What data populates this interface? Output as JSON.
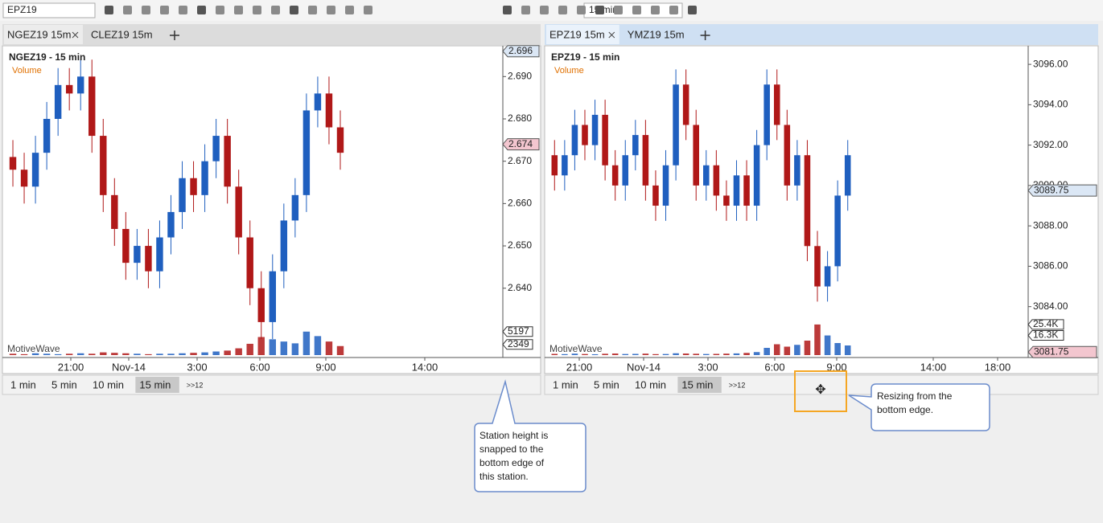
{
  "toolbar": {
    "symbol": "EPZ19",
    "interval": "15 min"
  },
  "panels": [
    {
      "tabs": [
        "NGEZ19 15m",
        "CLEZ19 15m"
      ],
      "title": "NGEZ19 - 15 min",
      "study": "Volume",
      "watermark": "MotiveWave",
      "ylim": [
        2.6242,
        2.6967
      ],
      "yticks": [
        {
          "value": 2.64,
          "label": "2.640"
        },
        {
          "value": 2.65,
          "label": "2.650"
        },
        {
          "value": 2.66,
          "label": "2.660"
        },
        {
          "value": 2.67,
          "label": "2.670"
        },
        {
          "value": 2.68,
          "label": "2.680"
        },
        {
          "value": 2.69,
          "label": "2.690"
        }
      ],
      "price_tags": [
        {
          "value": 2.696,
          "label": "2.696"
        },
        {
          "value": 2.674,
          "label": "2.674"
        }
      ],
      "volume_tags": [
        5197,
        2349
      ],
      "vlim": [
        0,
        8000
      ],
      "xticks": [
        "21:00",
        "Nov-14",
        "3:00",
        "6:00",
        "9:00",
        "14:00"
      ],
      "candles": {
        "open": [
          2.671,
          2.668,
          2.664,
          2.672,
          2.68,
          2.688,
          2.686,
          2.69,
          2.676,
          2.662,
          2.654,
          2.646,
          2.65,
          2.644,
          2.652,
          2.658,
          2.666,
          2.662,
          2.67,
          2.676,
          2.664,
          2.652,
          2.64,
          2.632,
          2.644,
          2.656,
          2.662,
          2.682,
          2.686,
          2.678
        ],
        "high": [
          2.675,
          2.672,
          2.676,
          2.684,
          2.692,
          2.692,
          2.694,
          2.694,
          2.68,
          2.666,
          2.658,
          2.654,
          2.654,
          2.656,
          2.662,
          2.67,
          2.67,
          2.674,
          2.68,
          2.68,
          2.668,
          2.656,
          2.644,
          2.648,
          2.66,
          2.666,
          2.686,
          2.69,
          2.69,
          2.682
        ],
        "low": [
          2.664,
          2.66,
          2.66,
          2.668,
          2.676,
          2.682,
          2.682,
          2.672,
          2.658,
          2.65,
          2.642,
          2.642,
          2.64,
          2.64,
          2.648,
          2.654,
          2.658,
          2.658,
          2.666,
          2.66,
          2.648,
          2.636,
          2.628,
          2.628,
          2.64,
          2.652,
          2.658,
          2.678,
          2.674,
          2.668
        ],
        "close": [
          2.668,
          2.664,
          2.672,
          2.68,
          2.688,
          2.686,
          2.69,
          2.676,
          2.662,
          2.654,
          2.646,
          2.65,
          2.644,
          2.652,
          2.658,
          2.666,
          2.662,
          2.67,
          2.676,
          2.664,
          2.652,
          2.64,
          2.632,
          2.644,
          2.656,
          2.662,
          2.682,
          2.686,
          2.678,
          2.672
        ]
      },
      "volume": [
        300,
        200,
        400,
        300,
        200,
        300,
        400,
        300,
        600,
        500,
        400,
        300,
        200,
        300,
        300,
        400,
        500,
        600,
        800,
        1000,
        1500,
        2500,
        4000,
        3500,
        3000,
        2600,
        5197,
        4200,
        3000,
        2000
      ],
      "periods": [
        "1 min",
        "5 min",
        "10 min",
        "15 min",
        ">>12"
      ]
    },
    {
      "tabs": [
        "EPZ19 15m",
        "YMZ19 15m"
      ],
      "title": "EPZ19 - 15 min",
      "study": "Volume",
      "watermark": "MotiveWave",
      "ylim": [
        3081.6,
        3096.8
      ],
      "yticks": [
        {
          "value": 3084,
          "label": "3084.00"
        },
        {
          "value": 3086,
          "label": "3086.00"
        },
        {
          "value": 3088,
          "label": "3088.00"
        },
        {
          "value": 3090,
          "label": "3090.00"
        },
        {
          "value": 3092,
          "label": "3092.00"
        },
        {
          "value": 3094,
          "label": "3094.00"
        },
        {
          "value": 3096,
          "label": "3096.00"
        }
      ],
      "price_tags": [
        {
          "value": 3089.75,
          "label": "3089.75"
        },
        {
          "value": 3081.75,
          "label": "3081.75"
        }
      ],
      "volume_tags": [
        {
          "value": 25400,
          "label": "25.4K"
        },
        {
          "value": 16300,
          "label": "16.3K"
        }
      ],
      "vlim": [
        0,
        30000
      ],
      "xticks": [
        "21:00",
        "Nov-14",
        "3:00",
        "6:00",
        "9:00",
        "14:00",
        "18:00"
      ],
      "candles": {
        "open": [
          3091.5,
          3090.5,
          3091.5,
          3093,
          3092,
          3093.5,
          3091,
          3090,
          3091.5,
          3092.5,
          3090,
          3089,
          3091,
          3095,
          3093,
          3090,
          3091,
          3089.5,
          3089,
          3090.5,
          3089,
          3092,
          3095,
          3093,
          3090,
          3091.5,
          3087,
          3085,
          3086,
          3089.5
        ],
        "high": [
          3092.25,
          3092.25,
          3093.75,
          3093.75,
          3094.25,
          3094.25,
          3091.75,
          3092.25,
          3093.25,
          3093.25,
          3090.75,
          3091.75,
          3095.75,
          3095.75,
          3093.75,
          3091.75,
          3091.75,
          3090.25,
          3091.25,
          3091.25,
          3092.75,
          3095.75,
          3095.75,
          3093.75,
          3092.25,
          3092.25,
          3087.75,
          3086.75,
          3090.25,
          3092.25
        ],
        "low": [
          3089.75,
          3089.75,
          3090.75,
          3091.25,
          3091.25,
          3090.25,
          3089.25,
          3089.25,
          3090.75,
          3089.25,
          3088.25,
          3088.25,
          3090.25,
          3092.25,
          3089.25,
          3089.25,
          3088.75,
          3088.25,
          3088.25,
          3088.25,
          3088.25,
          3091.25,
          3092.25,
          3089.25,
          3089.25,
          3086.25,
          3084.25,
          3084.25,
          3085.25,
          3088.75
        ],
        "close": [
          3090.5,
          3091.5,
          3093,
          3092,
          3093.5,
          3091,
          3090,
          3091.5,
          3092.5,
          3090,
          3089,
          3091,
          3095,
          3093,
          3090,
          3091,
          3089.5,
          3089,
          3090.5,
          3089,
          3092,
          3095,
          3093,
          3090,
          3091.5,
          3087,
          3085,
          3086,
          3089.5,
          3091.5
        ]
      },
      "volume": [
        1000,
        800,
        1200,
        900,
        700,
        1100,
        1300,
        900,
        1000,
        1200,
        800,
        900,
        1500,
        1300,
        1100,
        900,
        1000,
        1200,
        1400,
        1800,
        2500,
        6000,
        9000,
        7000,
        8500,
        12000,
        25400,
        16300,
        10000,
        8000
      ],
      "periods": [
        "1 min",
        "5 min",
        "10 min",
        "15 min",
        ">>12"
      ]
    }
  ],
  "callouts": [
    "Station height is snapped to the bottom edge of this station.",
    "Resizing from the bottom edge."
  ]
}
